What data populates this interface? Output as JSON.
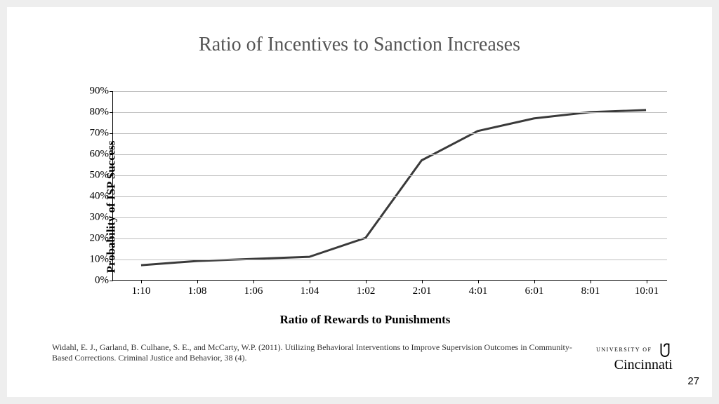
{
  "title": "Ratio of Incentives to Sanction Increases",
  "chart": {
    "type": "line",
    "ylabel": "Probability of ISP Success",
    "xlabel": "Ratio of Rewards to Punishments",
    "ylim": [
      0,
      90
    ],
    "ytick_step": 10,
    "yticks": [
      0,
      10,
      20,
      30,
      40,
      50,
      60,
      70,
      80,
      90
    ],
    "ytick_labels": [
      "0%",
      "10%",
      "20%",
      "30%",
      "40%",
      "50%",
      "60%",
      "70%",
      "80%",
      "90%"
    ],
    "categories": [
      "1:10",
      "1:08",
      "1:06",
      "1:04",
      "1:02",
      "2:01",
      "4:01",
      "6:01",
      "8:01",
      "10:01"
    ],
    "values": [
      7,
      9,
      10,
      11,
      20,
      57,
      71,
      77,
      80,
      81
    ],
    "line_color": "#3a3a3a",
    "line_width": 3,
    "grid_color": "#bfbfbf",
    "axis_color": "#000000",
    "background_color": "#ffffff",
    "label_fontsize": 17,
    "tick_fontsize": 15
  },
  "citation": "Widahl, E. J., Garland, B. Culhane, S. E., and McCarty, W.P. (2011). Utilizing Behavioral Interventions to Improve Supervision Outcomes in Community-Based Corrections.  Criminal Justice and Behavior, 38 (4).",
  "logo": {
    "small": "UNIVERSITY OF",
    "big": "Cincinnati"
  },
  "page_number": "27"
}
